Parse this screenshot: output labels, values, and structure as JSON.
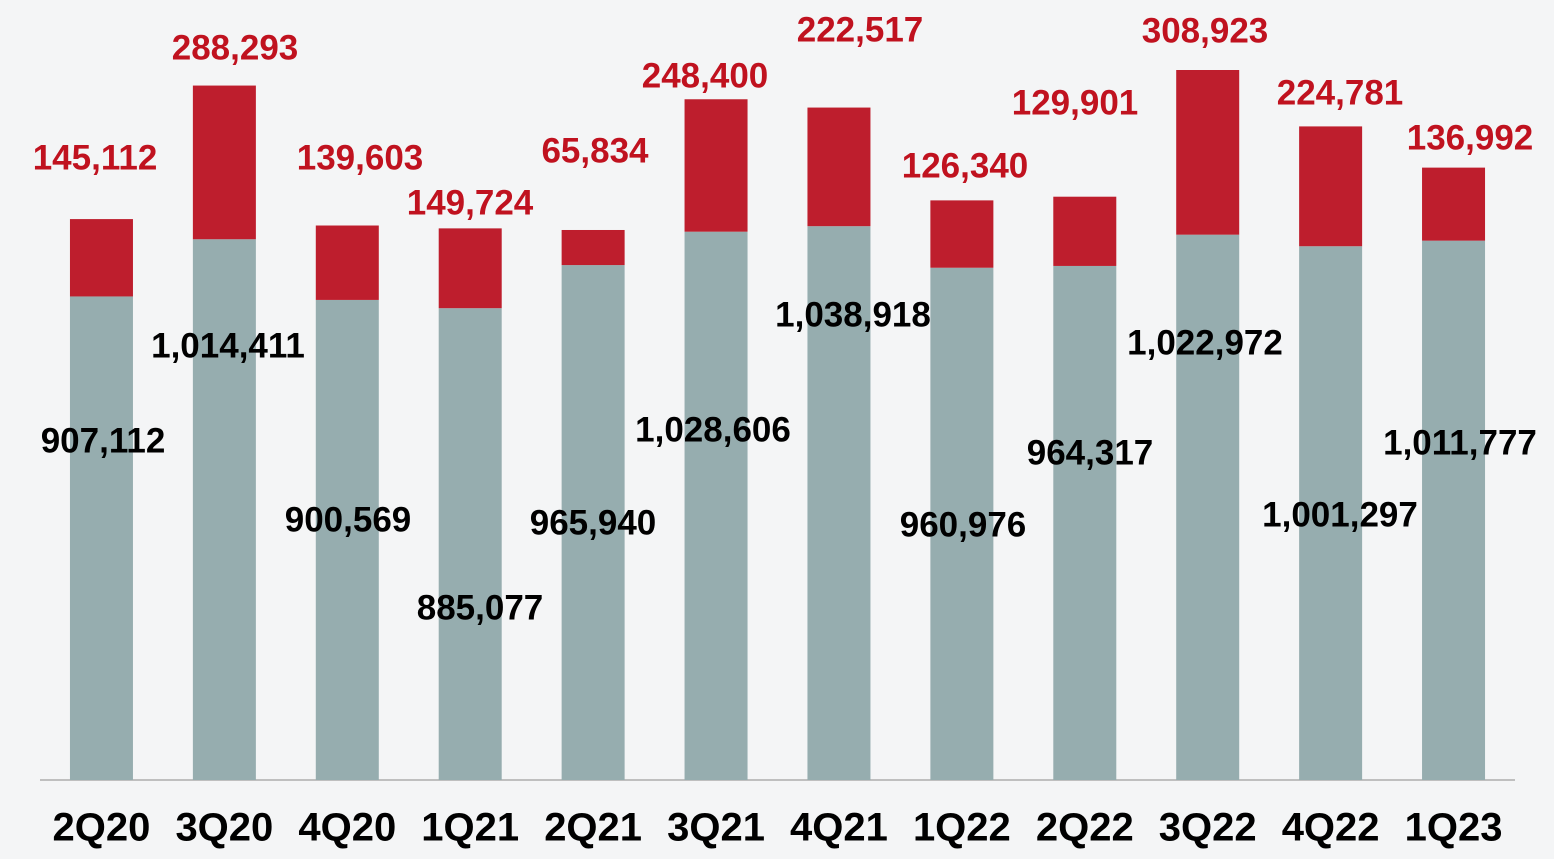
{
  "chart_data": {
    "type": "stacked-bar",
    "categories": [
      "2Q20",
      "3Q20",
      "4Q20",
      "1Q21",
      "2Q21",
      "3Q21",
      "4Q21",
      "1Q22",
      "2Q22",
      "3Q22",
      "4Q22",
      "1Q23"
    ],
    "series": [
      {
        "color": "#96adaf",
        "values": [
          907112,
          1014411,
          900569,
          885077,
          965940,
          1028606,
          1038918,
          960976,
          964317,
          1022972,
          1001297,
          1011777
        ],
        "value_labels": [
          "907,112",
          "1,014,411",
          "900,569",
          "885,077",
          "965,940",
          "1,028,606",
          "1,038,918",
          "960,976",
          "964,317",
          "1,022,972",
          "1,001,297",
          "1,011,777"
        ],
        "label_color": "#000000"
      },
      {
        "color": "#be1e2d",
        "values": [
          145112,
          288293,
          139603,
          149724,
          65834,
          248400,
          222517,
          126340,
          129901,
          308923,
          224781,
          136992
        ],
        "value_labels": [
          "145,112",
          "288,293",
          "139,603",
          "149,724",
          "65,834",
          "248,400",
          "222,517",
          "126,340",
          "129,901",
          "308,923",
          "224,781",
          "136,992"
        ],
        "label_color": "#c0121f"
      }
    ]
  }
}
